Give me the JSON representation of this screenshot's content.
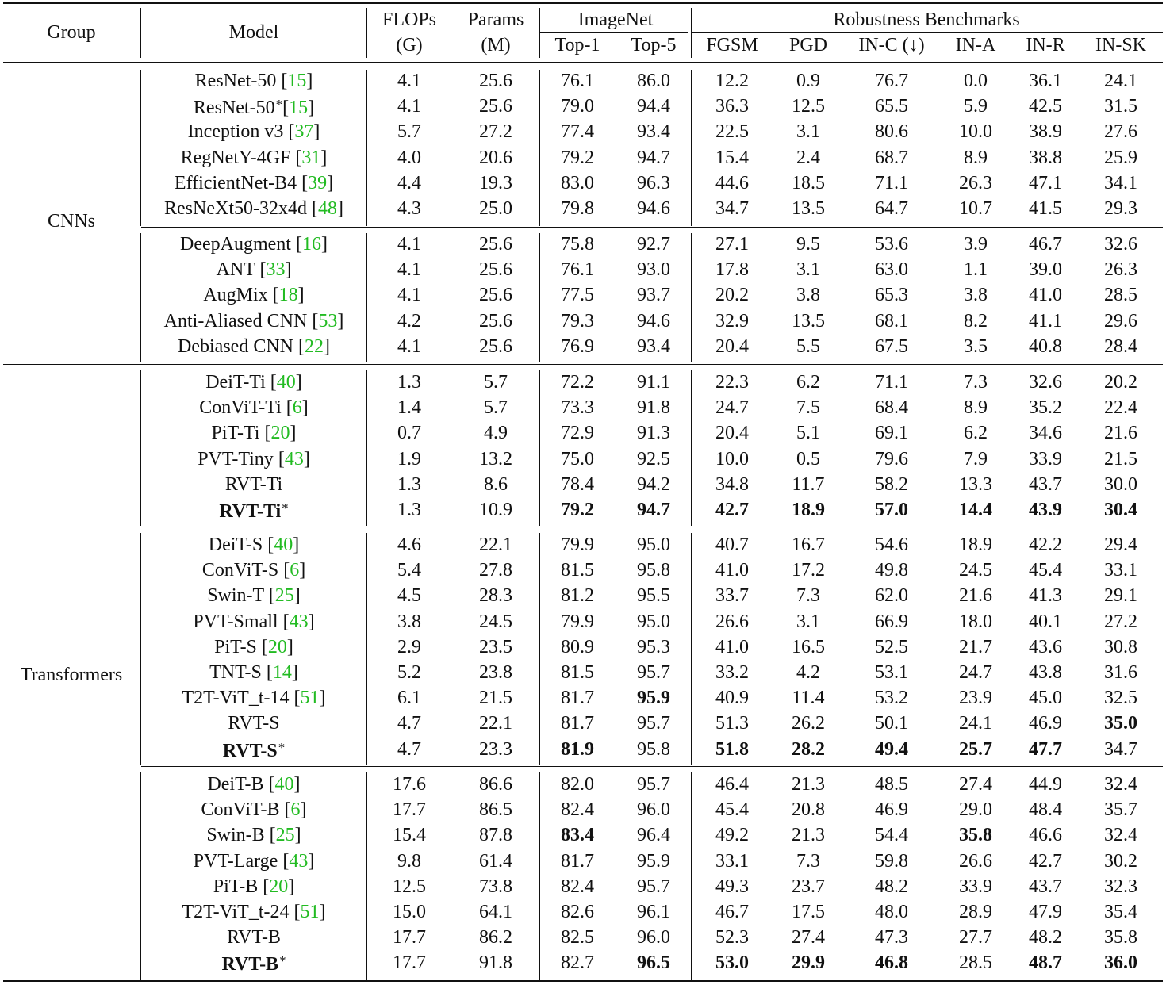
{
  "header": {
    "group": "Group",
    "model": "Model",
    "flops": [
      "FLOPs",
      "(G)"
    ],
    "params": [
      "Params",
      "(M)"
    ],
    "imagenet": "ImageNet",
    "top1": "Top-1",
    "top5": "Top-5",
    "robustness": "Robustness Benchmarks",
    "bench": [
      "FGSM",
      "PGD",
      "IN-C (↓)",
      "IN-A",
      "IN-R",
      "IN-SK"
    ]
  },
  "groups": [
    {
      "label": "CNNs"
    },
    {
      "label": "Transformers"
    }
  ],
  "rows": [
    {
      "name": "ResNet-50 ",
      "ref": "15",
      "vals": [
        "4.1",
        "25.6",
        "76.1",
        "86.0",
        "12.2",
        "0.9",
        "76.7",
        "0.0",
        "36.1",
        "24.1"
      ]
    },
    {
      "name": "ResNet-50",
      "star": true,
      "ref": "15",
      "vals": [
        "4.1",
        "25.6",
        "79.0",
        "94.4",
        "36.3",
        "12.5",
        "65.5",
        "5.9",
        "42.5",
        "31.5"
      ]
    },
    {
      "name": "Inception v3 ",
      "ref": "37",
      "vals": [
        "5.7",
        "27.2",
        "77.4",
        "93.4",
        "22.5",
        "3.1",
        "80.6",
        "10.0",
        "38.9",
        "27.6"
      ]
    },
    {
      "name": "RegNetY-4GF ",
      "ref": "31",
      "vals": [
        "4.0",
        "20.6",
        "79.2",
        "94.7",
        "15.4",
        "2.4",
        "68.7",
        "8.9",
        "38.8",
        "25.9"
      ]
    },
    {
      "name": "EfficientNet-B4 ",
      "ref": "39",
      "vals": [
        "4.4",
        "19.3",
        "83.0",
        "96.3",
        "44.6",
        "18.5",
        "71.1",
        "26.3",
        "47.1",
        "34.1"
      ]
    },
    {
      "name": "ResNeXt50-32x4d ",
      "ref": "48",
      "vals": [
        "4.3",
        "25.0",
        "79.8",
        "94.6",
        "34.7",
        "13.5",
        "64.7",
        "10.7",
        "41.5",
        "29.3"
      ]
    },
    {
      "name": "DeepAugment ",
      "ref": "16",
      "vals": [
        "4.1",
        "25.6",
        "75.8",
        "92.7",
        "27.1",
        "9.5",
        "53.6",
        "3.9",
        "46.7",
        "32.6"
      ]
    },
    {
      "name": "ANT ",
      "ref": "33",
      "vals": [
        "4.1",
        "25.6",
        "76.1",
        "93.0",
        "17.8",
        "3.1",
        "63.0",
        "1.1",
        "39.0",
        "26.3"
      ]
    },
    {
      "name": "AugMix ",
      "ref": "18",
      "vals": [
        "4.1",
        "25.6",
        "77.5",
        "93.7",
        "20.2",
        "3.8",
        "65.3",
        "3.8",
        "41.0",
        "28.5"
      ]
    },
    {
      "name": "Anti-Aliased CNN ",
      "ref": "53",
      "vals": [
        "4.2",
        "25.6",
        "79.3",
        "94.6",
        "32.9",
        "13.5",
        "68.1",
        "8.2",
        "41.1",
        "29.6"
      ]
    },
    {
      "name": "Debiased CNN ",
      "ref": "22",
      "vals": [
        "4.1",
        "25.6",
        "76.9",
        "93.4",
        "20.4",
        "5.5",
        "67.5",
        "3.5",
        "40.8",
        "28.4"
      ]
    },
    {
      "name": "DeiT-Ti ",
      "ref": "40",
      "vals": [
        "1.3",
        "5.7",
        "72.2",
        "91.1",
        "22.3",
        "6.2",
        "71.1",
        "7.3",
        "32.6",
        "20.2"
      ]
    },
    {
      "name": "ConViT-Ti ",
      "ref": "6",
      "vals": [
        "1.4",
        "5.7",
        "73.3",
        "91.8",
        "24.7",
        "7.5",
        "68.4",
        "8.9",
        "35.2",
        "22.4"
      ]
    },
    {
      "name": "PiT-Ti ",
      "ref": "20",
      "vals": [
        "0.7",
        "4.9",
        "72.9",
        "91.3",
        "20.4",
        "5.1",
        "69.1",
        "6.2",
        "34.6",
        "21.6"
      ]
    },
    {
      "name": "PVT-Tiny ",
      "ref": "43",
      "vals": [
        "1.9",
        "13.2",
        "75.0",
        "92.5",
        "10.0",
        "0.5",
        "79.6",
        "7.9",
        "33.9",
        "21.5"
      ]
    },
    {
      "name": "RVT-Ti",
      "vals": [
        "1.3",
        "8.6",
        "78.4",
        "94.2",
        "34.8",
        "11.7",
        "58.2",
        "13.3",
        "43.7",
        "30.0"
      ]
    },
    {
      "name": "RVT-Ti",
      "star": true,
      "boldname": true,
      "vals": [
        "1.3",
        "10.9",
        "79.2",
        "94.7",
        "42.7",
        "18.9",
        "57.0",
        "14.4",
        "43.9",
        "30.4"
      ],
      "bold": [
        2,
        3,
        4,
        5,
        6,
        7,
        8,
        9
      ]
    },
    {
      "name": "DeiT-S ",
      "ref": "40",
      "vals": [
        "4.6",
        "22.1",
        "79.9",
        "95.0",
        "40.7",
        "16.7",
        "54.6",
        "18.9",
        "42.2",
        "29.4"
      ]
    },
    {
      "name": "ConViT-S ",
      "ref": "6",
      "vals": [
        "5.4",
        "27.8",
        "81.5",
        "95.8",
        "41.0",
        "17.2",
        "49.8",
        "24.5",
        "45.4",
        "33.1"
      ]
    },
    {
      "name": "Swin-T ",
      "ref": "25",
      "vals": [
        "4.5",
        "28.3",
        "81.2",
        "95.5",
        "33.7",
        "7.3",
        "62.0",
        "21.6",
        "41.3",
        "29.1"
      ]
    },
    {
      "name": "PVT-Small ",
      "ref": "43",
      "vals": [
        "3.8",
        "24.5",
        "79.9",
        "95.0",
        "26.6",
        "3.1",
        "66.9",
        "18.0",
        "40.1",
        "27.2"
      ]
    },
    {
      "name": "PiT-S ",
      "ref": "20",
      "vals": [
        "2.9",
        "23.5",
        "80.9",
        "95.3",
        "41.0",
        "16.5",
        "52.5",
        "21.7",
        "43.6",
        "30.8"
      ]
    },
    {
      "name": "TNT-S ",
      "ref": "14",
      "vals": [
        "5.2",
        "23.8",
        "81.5",
        "95.7",
        "33.2",
        "4.2",
        "53.1",
        "24.7",
        "43.8",
        "31.6"
      ]
    },
    {
      "name": "T2T-ViT_t-14 ",
      "ref": "51",
      "vals": [
        "6.1",
        "21.5",
        "81.7",
        "95.9",
        "40.9",
        "11.4",
        "53.2",
        "23.9",
        "45.0",
        "32.5"
      ],
      "bold": [
        3
      ]
    },
    {
      "name": "RVT-S",
      "vals": [
        "4.7",
        "22.1",
        "81.7",
        "95.7",
        "51.3",
        "26.2",
        "50.1",
        "24.1",
        "46.9",
        "35.0"
      ],
      "bold": [
        9
      ]
    },
    {
      "name": "RVT-S",
      "star": true,
      "boldname": true,
      "vals": [
        "4.7",
        "23.3",
        "81.9",
        "95.8",
        "51.8",
        "28.2",
        "49.4",
        "25.7",
        "47.7",
        "34.7"
      ],
      "bold": [
        2,
        4,
        5,
        6,
        7,
        8
      ]
    },
    {
      "name": "DeiT-B ",
      "ref": "40",
      "vals": [
        "17.6",
        "86.6",
        "82.0",
        "95.7",
        "46.4",
        "21.3",
        "48.5",
        "27.4",
        "44.9",
        "32.4"
      ]
    },
    {
      "name": "ConViT-B ",
      "ref": "6",
      "vals": [
        "17.7",
        "86.5",
        "82.4",
        "96.0",
        "45.4",
        "20.8",
        "46.9",
        "29.0",
        "48.4",
        "35.7"
      ]
    },
    {
      "name": "Swin-B ",
      "ref": "25",
      "vals": [
        "15.4",
        "87.8",
        "83.4",
        "96.4",
        "49.2",
        "21.3",
        "54.4",
        "35.8",
        "46.6",
        "32.4"
      ],
      "bold": [
        2,
        7
      ]
    },
    {
      "name": "PVT-Large ",
      "ref": "43",
      "vals": [
        "9.8",
        "61.4",
        "81.7",
        "95.9",
        "33.1",
        "7.3",
        "59.8",
        "26.6",
        "42.7",
        "30.2"
      ]
    },
    {
      "name": "PiT-B ",
      "ref": "20",
      "vals": [
        "12.5",
        "73.8",
        "82.4",
        "95.7",
        "49.3",
        "23.7",
        "48.2",
        "33.9",
        "43.7",
        "32.3"
      ]
    },
    {
      "name": "T2T-ViT_t-24 ",
      "ref": "51",
      "vals": [
        "15.0",
        "64.1",
        "82.6",
        "96.1",
        "46.7",
        "17.5",
        "48.0",
        "28.9",
        "47.9",
        "35.4"
      ]
    },
    {
      "name": "RVT-B",
      "vals": [
        "17.7",
        "86.2",
        "82.5",
        "96.0",
        "52.3",
        "27.4",
        "47.3",
        "27.7",
        "48.2",
        "35.8"
      ]
    },
    {
      "name": "RVT-B",
      "star": true,
      "boldname": true,
      "vals": [
        "17.7",
        "91.8",
        "82.7",
        "96.5",
        "53.0",
        "29.9",
        "46.8",
        "28.5",
        "48.7",
        "36.0"
      ],
      "bold": [
        3,
        4,
        5,
        6,
        8,
        9
      ]
    }
  ]
}
